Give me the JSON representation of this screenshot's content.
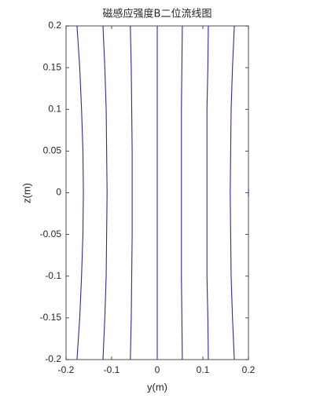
{
  "chart_data": {
    "type": "line",
    "title": "磁感应强度B二位流线图",
    "xlabel": "y(m)",
    "ylabel": "z(m)",
    "xlim": [
      -0.2,
      0.2
    ],
    "ylim": [
      -0.2,
      0.2
    ],
    "xticks": [
      -0.2,
      -0.1,
      0,
      0.1,
      0.2
    ],
    "yticks": [
      -0.2,
      -0.15,
      -0.1,
      -0.05,
      0,
      0.05,
      0.1,
      0.15,
      0.2
    ],
    "color": "#2a2aa6",
    "series": [
      {
        "x": [
          -0.176,
          -0.17,
          -0.166,
          -0.163,
          -0.162,
          -0.163,
          -0.166,
          -0.17,
          -0.176
        ],
        "values": [
          -0.2,
          -0.15,
          -0.1,
          -0.05,
          0,
          0.05,
          0.1,
          0.15,
          0.2
        ]
      },
      {
        "x": [
          -0.119,
          -0.115,
          -0.112,
          -0.111,
          -0.11,
          -0.111,
          -0.112,
          -0.115,
          -0.119
        ],
        "values": [
          -0.2,
          -0.15,
          -0.1,
          -0.05,
          0,
          0.05,
          0.1,
          0.15,
          0.2
        ]
      },
      {
        "x": [
          -0.059,
          -0.057,
          -0.056,
          -0.055,
          -0.055,
          -0.055,
          -0.056,
          -0.057,
          -0.059
        ],
        "values": [
          -0.2,
          -0.15,
          -0.1,
          -0.05,
          0,
          0.05,
          0.1,
          0.15,
          0.2
        ]
      },
      {
        "x": [
          0,
          0,
          0,
          0,
          0,
          0,
          0,
          0,
          0
        ],
        "values": [
          -0.2,
          -0.15,
          -0.1,
          -0.05,
          0,
          0.05,
          0.1,
          0.15,
          0.2
        ]
      },
      {
        "x": [
          0.055,
          0.054,
          0.053,
          0.053,
          0.053,
          0.053,
          0.053,
          0.054,
          0.055
        ],
        "values": [
          -0.2,
          -0.15,
          -0.1,
          -0.05,
          0,
          0.05,
          0.1,
          0.15,
          0.2
        ]
      },
      {
        "x": [
          0.112,
          0.111,
          0.109,
          0.109,
          0.109,
          0.109,
          0.109,
          0.111,
          0.112
        ],
        "values": [
          -0.2,
          -0.15,
          -0.1,
          -0.05,
          0,
          0.05,
          0.1,
          0.15,
          0.2
        ]
      },
      {
        "x": [
          0.169,
          0.165,
          0.162,
          0.161,
          0.16,
          0.161,
          0.162,
          0.165,
          0.169
        ],
        "values": [
          -0.2,
          -0.15,
          -0.1,
          -0.05,
          0,
          0.05,
          0.1,
          0.15,
          0.2
        ]
      },
      {
        "x": [
          0.2,
          0.2
        ],
        "values": [
          0.005,
          -0.005
        ]
      }
    ]
  }
}
